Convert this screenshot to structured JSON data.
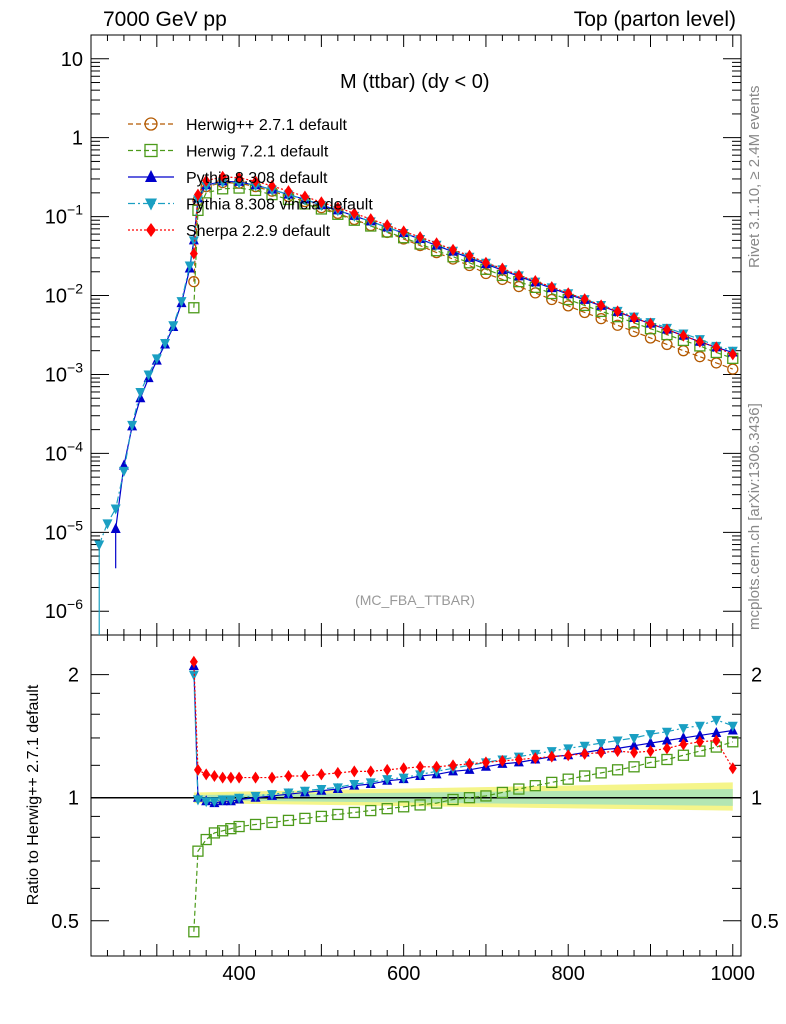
{
  "header": {
    "left": "7000 GeV pp",
    "right": "Top (parton level)"
  },
  "side": {
    "rivet": "Rivet 3.1.10, ≥ 2.4M events",
    "mcplots": "mcplots.cern.ch [arXiv:1306.3436]"
  },
  "plot_title": "M (ttbar) (dy < 0)",
  "watermark": "(MC_FBA_TTBAR)",
  "ratio_ylabel": "Ratio to Herwig++ 2.7.1 default",
  "colors": {
    "herwigpp": "#b35900",
    "herwig7": "#4c9a1a",
    "pythia": "#0000cc",
    "vincia": "#1a9fc2",
    "sherpa": "#ff0000",
    "band_inner": "#b3e6b3",
    "band_outer": "#f5f58a"
  },
  "chart_data": [
    {
      "type": "line",
      "panel": "main",
      "yscale": "log",
      "xlim": [
        220,
        1010
      ],
      "ylim": [
        5e-07,
        20
      ],
      "x_ticks": [
        400,
        600,
        800,
        1000
      ],
      "y_ticks": [
        "10",
        "1",
        "10^-1",
        "10^-2",
        "10^-3",
        "10^-4",
        "10^-5",
        "10^-6"
      ],
      "legend_position": "top-left",
      "x": [
        230,
        240,
        250,
        260,
        270,
        280,
        290,
        300,
        310,
        320,
        330,
        340,
        345,
        350,
        360,
        380,
        400,
        420,
        440,
        460,
        480,
        500,
        520,
        540,
        560,
        580,
        600,
        620,
        640,
        660,
        680,
        700,
        720,
        740,
        760,
        780,
        800,
        820,
        840,
        860,
        880,
        900,
        920,
        940,
        960,
        980,
        1000
      ],
      "series": [
        {
          "name": "Herwig++ 2.7.1 default",
          "marker": "open-circle",
          "dash": "dashed",
          "values": [
            null,
            null,
            null,
            null,
            null,
            null,
            null,
            null,
            null,
            null,
            null,
            null,
            0.015,
            0.16,
            0.24,
            0.27,
            0.265,
            0.24,
            0.21,
            0.18,
            0.155,
            0.13,
            0.11,
            0.092,
            0.077,
            0.063,
            0.052,
            0.043,
            0.035,
            0.029,
            0.024,
            0.019,
            0.016,
            0.013,
            0.0108,
            0.0089,
            0.0074,
            0.0061,
            0.0051,
            0.0042,
            0.0035,
            0.0029,
            0.0024,
            0.002,
            0.00168,
            0.0014,
            0.00117
          ]
        },
        {
          "name": "Herwig 7.2.1 default",
          "marker": "open-square",
          "dash": "dashed",
          "values": [
            null,
            null,
            null,
            null,
            null,
            null,
            null,
            null,
            null,
            null,
            null,
            null,
            0.007,
            0.12,
            0.2,
            0.225,
            0.23,
            0.215,
            0.19,
            0.165,
            0.145,
            0.125,
            0.107,
            0.09,
            0.076,
            0.064,
            0.054,
            0.045,
            0.037,
            0.031,
            0.026,
            0.0215,
            0.018,
            0.015,
            0.0127,
            0.0106,
            0.0089,
            0.0075,
            0.0063,
            0.0054,
            0.0045,
            0.0038,
            0.0032,
            0.0027,
            0.0023,
            0.0019,
            0.0016
          ]
        },
        {
          "name": "Pythia 8.308 default",
          "marker": "filled-triangle-up",
          "dash": "solid",
          "values": [
            null,
            null,
            1.1e-05,
            7e-05,
            0.00022,
            0.0005,
            0.0009,
            0.0015,
            0.0024,
            0.004,
            0.008,
            0.022,
            0.05,
            0.17,
            0.25,
            0.28,
            0.275,
            0.25,
            0.22,
            0.19,
            0.165,
            0.14,
            0.12,
            0.102,
            0.087,
            0.073,
            0.062,
            0.052,
            0.043,
            0.036,
            0.03,
            0.025,
            0.021,
            0.0175,
            0.0147,
            0.0124,
            0.0104,
            0.0088,
            0.0074,
            0.0062,
            0.0052,
            0.0044,
            0.0037,
            0.0031,
            0.0026,
            0.0022,
            0.0019
          ]
        },
        {
          "name": "Pythia 8.308 vincia default",
          "marker": "filled-triangle-down",
          "dash": "dashdot",
          "values": [
            7e-06,
            1.3e-05,
            2e-05,
            6e-05,
            0.00023,
            0.0006,
            0.001,
            0.0016,
            0.0025,
            0.0042,
            0.0085,
            0.024,
            0.05,
            0.165,
            0.245,
            0.275,
            0.27,
            0.25,
            0.22,
            0.19,
            0.165,
            0.14,
            0.12,
            0.102,
            0.087,
            0.073,
            0.062,
            0.052,
            0.044,
            0.037,
            0.031,
            0.026,
            0.0215,
            0.018,
            0.015,
            0.0127,
            0.0107,
            0.009,
            0.0076,
            0.0064,
            0.0054,
            0.0046,
            0.0039,
            0.0033,
            0.0028,
            0.0023,
            0.002
          ]
        },
        {
          "name": "Sherpa 2.2.9 default",
          "marker": "filled-diamond",
          "dash": "dotted",
          "values": [
            null,
            null,
            null,
            null,
            null,
            null,
            null,
            null,
            null,
            null,
            null,
            null,
            0.034,
            0.19,
            0.285,
            0.32,
            0.31,
            0.28,
            0.245,
            0.21,
            0.18,
            0.152,
            0.13,
            0.11,
            0.093,
            0.078,
            0.065,
            0.055,
            0.046,
            0.038,
            0.032,
            0.026,
            0.022,
            0.018,
            0.0153,
            0.0128,
            0.0107,
            0.009,
            0.0075,
            0.0063,
            0.0052,
            0.0044,
            0.0037,
            0.0031,
            0.0026,
            0.0022,
            0.0018
          ]
        }
      ]
    },
    {
      "type": "line",
      "panel": "ratio",
      "xlim": [
        220,
        1010
      ],
      "ylim": [
        0.41,
        2.5
      ],
      "yscale": "log",
      "x_ticks": [
        400,
        600,
        800,
        1000
      ],
      "y_ticks": [
        0.5,
        1,
        2
      ],
      "ylabel": "Ratio to Herwig++ 2.7.1 default",
      "reference_line": 1,
      "x": [
        345,
        350,
        360,
        370,
        380,
        390,
        400,
        420,
        440,
        460,
        480,
        500,
        520,
        540,
        560,
        580,
        600,
        620,
        640,
        660,
        680,
        700,
        720,
        740,
        760,
        780,
        800,
        820,
        840,
        860,
        880,
        900,
        920,
        940,
        960,
        980,
        1000
      ],
      "series": [
        {
          "name": "Herwig 7.2.1 default",
          "values": [
            0.47,
            0.74,
            0.79,
            0.82,
            0.83,
            0.84,
            0.85,
            0.86,
            0.87,
            0.88,
            0.89,
            0.9,
            0.91,
            0.92,
            0.93,
            0.94,
            0.95,
            0.96,
            0.97,
            0.99,
            1.0,
            1.01,
            1.03,
            1.05,
            1.07,
            1.09,
            1.11,
            1.13,
            1.15,
            1.17,
            1.19,
            1.22,
            1.24,
            1.27,
            1.3,
            1.33,
            1.37
          ]
        },
        {
          "name": "Pythia 8.308 default",
          "values": [
            2.1,
            1.0,
            0.98,
            0.97,
            0.98,
            0.98,
            0.99,
            1.0,
            1.01,
            1.02,
            1.03,
            1.04,
            1.05,
            1.07,
            1.08,
            1.1,
            1.11,
            1.13,
            1.14,
            1.16,
            1.17,
            1.19,
            1.21,
            1.22,
            1.24,
            1.26,
            1.27,
            1.29,
            1.31,
            1.32,
            1.34,
            1.36,
            1.38,
            1.4,
            1.42,
            1.44,
            1.46
          ]
        },
        {
          "name": "Pythia 8.308 vincia default",
          "values": [
            2.0,
            0.99,
            0.98,
            0.98,
            0.99,
            0.99,
            1.0,
            1.01,
            1.02,
            1.03,
            1.04,
            1.05,
            1.06,
            1.08,
            1.09,
            1.11,
            1.12,
            1.14,
            1.16,
            1.18,
            1.2,
            1.22,
            1.24,
            1.26,
            1.28,
            1.3,
            1.32,
            1.34,
            1.36,
            1.38,
            1.4,
            1.43,
            1.45,
            1.48,
            1.5,
            1.55,
            1.5
          ]
        },
        {
          "name": "Sherpa 2.2.9 default",
          "values": [
            2.15,
            1.17,
            1.14,
            1.13,
            1.12,
            1.12,
            1.12,
            1.12,
            1.12,
            1.13,
            1.13,
            1.14,
            1.15,
            1.16,
            1.16,
            1.17,
            1.18,
            1.19,
            1.19,
            1.2,
            1.21,
            1.22,
            1.23,
            1.24,
            1.25,
            1.26,
            1.27,
            1.28,
            1.29,
            1.3,
            1.29,
            1.3,
            1.32,
            1.35,
            1.37,
            1.38,
            1.18
          ]
        }
      ]
    }
  ]
}
